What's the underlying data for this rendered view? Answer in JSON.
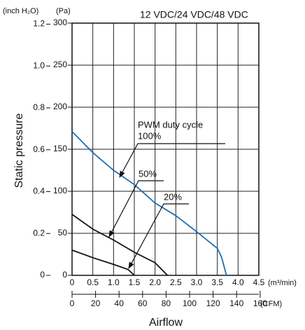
{
  "chart_data": {
    "type": "line",
    "title": "12 VDC/24 VDC/48 VDC",
    "y_label": "Static pressure",
    "x_label": "Airflow",
    "y_unit": "(Pa)",
    "y2_unit": "(inch H₂O)",
    "x_unit": "(m³/min)",
    "x2_unit": "(CFM)",
    "annotations": [
      "PWM duty cycle",
      "100%",
      "50%",
      "20%"
    ],
    "xlim": [
      0,
      4.5
    ],
    "xticks": [
      0,
      0.5,
      {
        "value": 1,
        "label": "1.0"
      },
      1.5,
      {
        "value": 2,
        "label": "2.0"
      },
      2.5,
      {
        "value": 3,
        "label": "3.0"
      },
      3.5,
      {
        "value": 4,
        "label": "4.0"
      },
      4.5
    ],
    "x2lim": [
      0,
      158.9
    ],
    "x2ticks": [
      0,
      20,
      40,
      60,
      80,
      100,
      120,
      140,
      160
    ],
    "ylim": [
      0,
      300
    ],
    "yticks": [
      0,
      50,
      100,
      150,
      200,
      250,
      300
    ],
    "y2lim": [
      0,
      1.205
    ],
    "y2ticks": [
      0,
      0.2,
      0.4,
      0.6,
      0.8,
      {
        "value": 1,
        "label": "1.0"
      },
      1.2
    ],
    "grid": true,
    "series": [
      {
        "name": "100%",
        "color": "#1f6fb5",
        "x": [
          0,
          0.5,
          1.0,
          1.5,
          2.0,
          2.5,
          3.0,
          3.5,
          3.6,
          3.72
        ],
        "values": [
          171,
          146,
          125,
          108,
          86,
          71,
          52,
          32,
          22,
          0
        ]
      },
      {
        "name": "50%",
        "color": "#111111",
        "x": [
          0,
          0.5,
          1.0,
          1.5,
          2.0,
          2.3
        ],
        "values": [
          72.5,
          55,
          42,
          27.5,
          15,
          0
        ]
      },
      {
        "name": "20%",
        "color": "#111111",
        "x": [
          0,
          0.5,
          1.0,
          1.35,
          1.5
        ],
        "values": [
          30,
          21,
          13,
          7,
          0
        ]
      }
    ]
  }
}
